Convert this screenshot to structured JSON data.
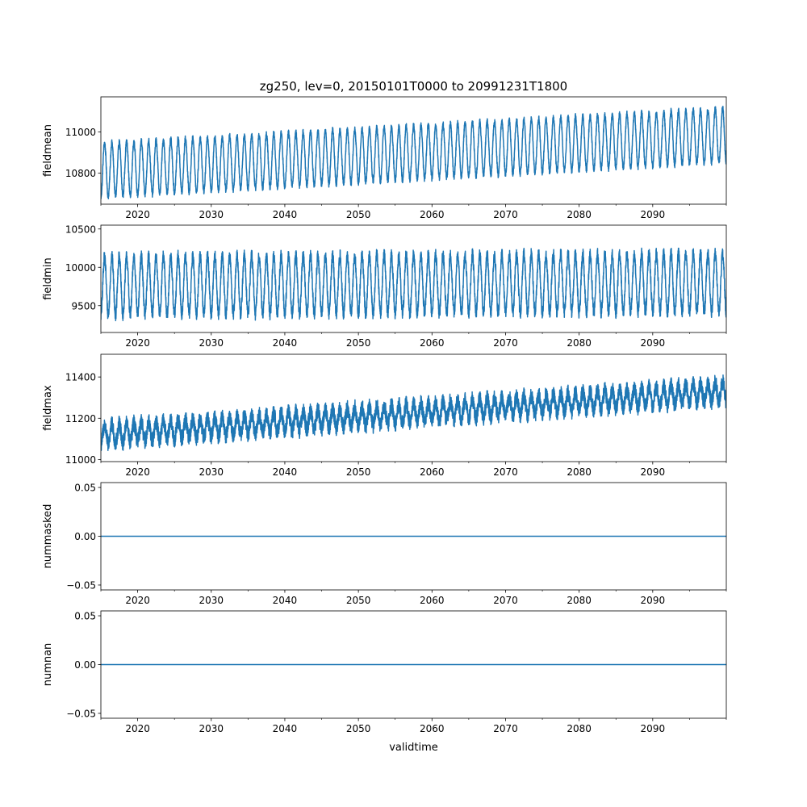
{
  "figure": {
    "title": "zg250, lev=0, 20150101T0000 to 20991231T1800",
    "xlabel": "validtime"
  },
  "colors": {
    "series": "#1f77b4",
    "axes": "#000000",
    "background": "#ffffff"
  },
  "x_axis": {
    "range": [
      2015.0,
      2100.0
    ],
    "major_ticks": [
      2020,
      2030,
      2040,
      2050,
      2060,
      2070,
      2080,
      2090
    ],
    "tick_labels": [
      "2020",
      "2030",
      "2040",
      "2050",
      "2060",
      "2070",
      "2080",
      "2090"
    ],
    "minor_tick_step": 5
  },
  "chart_data": [
    {
      "type": "line",
      "ylabel": "fieldmean",
      "ylim": [
        10650,
        11170
      ],
      "yticks": [
        10800,
        11000
      ],
      "ytick_labels": [
        "10800",
        "11000"
      ],
      "grid": false,
      "series_summary": {
        "pattern": "annual cycle with upward trend",
        "cycles_per_year": 1,
        "start_center": 10815,
        "end_center": 10985,
        "amplitude": 130,
        "noise": 15
      }
    },
    {
      "type": "line",
      "ylabel": "fieldmin",
      "ylim": [
        9150,
        10550
      ],
      "yticks": [
        9500,
        10000,
        10500
      ],
      "ytick_labels": [
        "9500",
        "10000",
        "10500"
      ],
      "grid": false,
      "series_summary": {
        "pattern": "annual cycle, no trend",
        "cycles_per_year": 1,
        "start_center": 9760,
        "end_center": 9800,
        "amplitude": 380,
        "noise": 80
      }
    },
    {
      "type": "line",
      "ylabel": "fieldmax",
      "ylim": [
        10990,
        11510
      ],
      "yticks": [
        11000,
        11200,
        11400
      ],
      "ytick_labels": [
        "11000",
        "11200",
        "11400"
      ],
      "grid": false,
      "series_summary": {
        "pattern": "noisy band with upward trend",
        "cycles_per_year": 1,
        "start_center": 11120,
        "end_center": 11330,
        "amplitude": 45,
        "noise": 40
      }
    },
    {
      "type": "line",
      "ylabel": "nummasked",
      "ylim": [
        -0.055,
        0.055
      ],
      "yticks": [
        -0.05,
        0.0,
        0.05
      ],
      "ytick_labels": [
        "−0.05",
        "0.00",
        "0.05"
      ],
      "grid": false,
      "series_summary": {
        "pattern": "constant",
        "value": 0.0
      }
    },
    {
      "type": "line",
      "ylabel": "numnan",
      "ylim": [
        -0.055,
        0.055
      ],
      "yticks": [
        -0.05,
        0.0,
        0.05
      ],
      "ytick_labels": [
        "−0.05",
        "0.00",
        "0.05"
      ],
      "grid": false,
      "series_summary": {
        "pattern": "constant",
        "value": 0.0
      }
    }
  ]
}
